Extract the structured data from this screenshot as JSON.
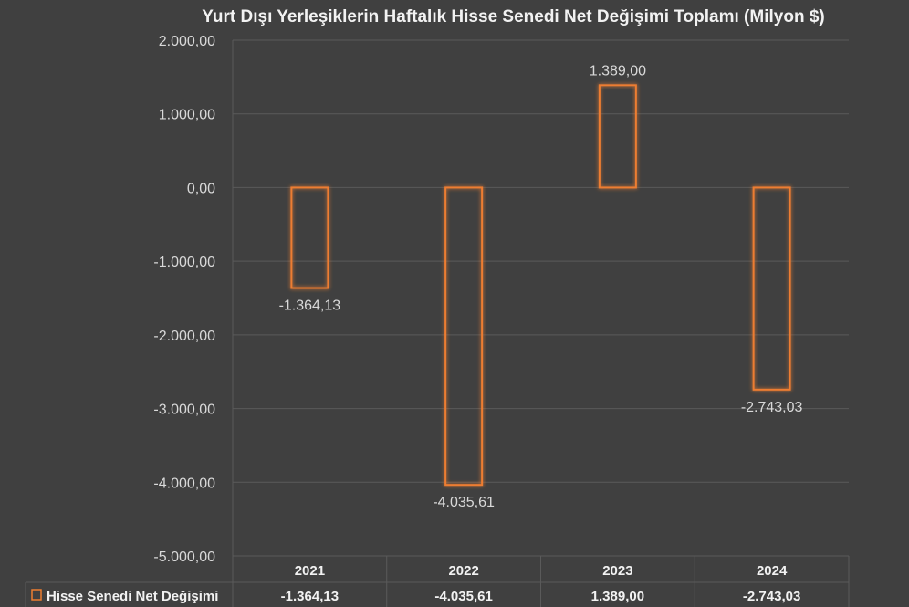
{
  "chart_data": {
    "type": "bar",
    "title": "Yurt Dışı Yerleşiklerin Haftalık Hisse Senedi Net Değişimi Toplamı (Milyon $)",
    "categories": [
      "2021",
      "2022",
      "2023",
      "2024"
    ],
    "series": [
      {
        "name": "Hisse Senedi Net Değişimi",
        "values": [
          -1364.13,
          -4035.61,
          1389.0,
          -2743.03
        ],
        "labels": [
          "-1.364,13",
          "-4.035,61",
          "1.389,00",
          "-2.743,03"
        ],
        "color": "#ed7d31"
      }
    ],
    "ylim": [
      -5000,
      2000
    ],
    "yticks": [
      2000,
      1000,
      0,
      -1000,
      -2000,
      -3000,
      -4000,
      -5000
    ],
    "ytick_labels": [
      "2.000,00",
      "1.000,00",
      "0,00",
      "-1.000,00",
      "-2.000,00",
      "-3.000,00",
      "-4.000,00",
      "-5.000,00"
    ],
    "grid": true,
    "legend": "data-table",
    "data_table": true
  },
  "colors": {
    "background": "#404040",
    "grid": "#5a5a5a",
    "bar_outline": "#ed7d31",
    "text": "#d9d9d9"
  }
}
